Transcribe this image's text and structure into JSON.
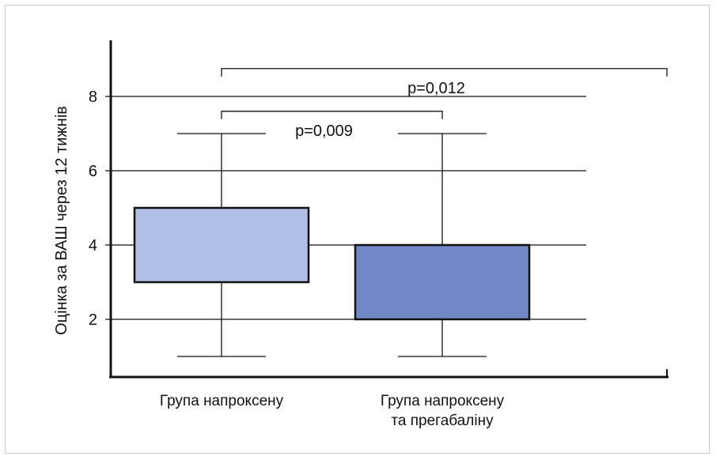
{
  "chart_data": {
    "type": "box",
    "title": "",
    "ylabel": "Оцінка за ВАШ через 12 тижнів",
    "xlabel": "",
    "ylim": [
      0.5,
      9.5
    ],
    "yticks": [
      "2",
      "4",
      "6",
      "8"
    ],
    "grid": true,
    "categories": [
      [
        "Група напроксену"
      ],
      [
        "Група напроксену",
        "та прегабаліну"
      ]
    ],
    "boxes": [
      {
        "min": 1,
        "q1": 3,
        "q3": 5,
        "max": 7,
        "color": "#afbfe5"
      },
      {
        "min": 1,
        "q1": 2,
        "q3": 4,
        "max": 7,
        "color": "#7287c5"
      }
    ],
    "significance": [
      {
        "from": 0,
        "to": 1,
        "y": 7.6,
        "label": "p=0,009"
      },
      {
        "from": 0,
        "to": 2,
        "y": 8.75,
        "label": "p=0,012"
      }
    ]
  }
}
